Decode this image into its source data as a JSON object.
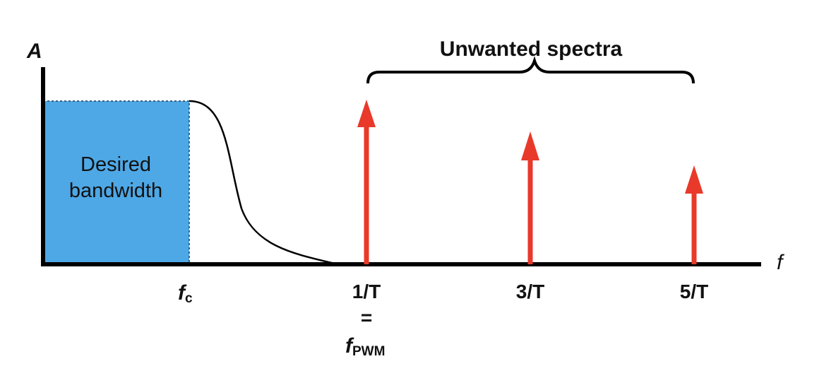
{
  "axis": {
    "y_label": "A",
    "x_label": "f"
  },
  "band": {
    "line1": "Desired",
    "line2": "bandwidth",
    "fill": "#4ea8e6"
  },
  "brace_label": "Unwanted spectra",
  "labels": {
    "fc_main": "f",
    "fc_sub": "c",
    "one_t": "1/T",
    "equals": "=",
    "fpwm_main": "f",
    "fpwm_sub": "PWM",
    "three_t": "3/T",
    "five_t": "5/T"
  },
  "harmonics": [
    {
      "name": "1/T",
      "relative_amplitude": 1.0
    },
    {
      "name": "3/T",
      "relative_amplitude": 0.8
    },
    {
      "name": "5/T",
      "relative_amplitude": 0.6
    }
  ],
  "colors": {
    "arrow": "#e8392b",
    "axis": "#000000"
  }
}
